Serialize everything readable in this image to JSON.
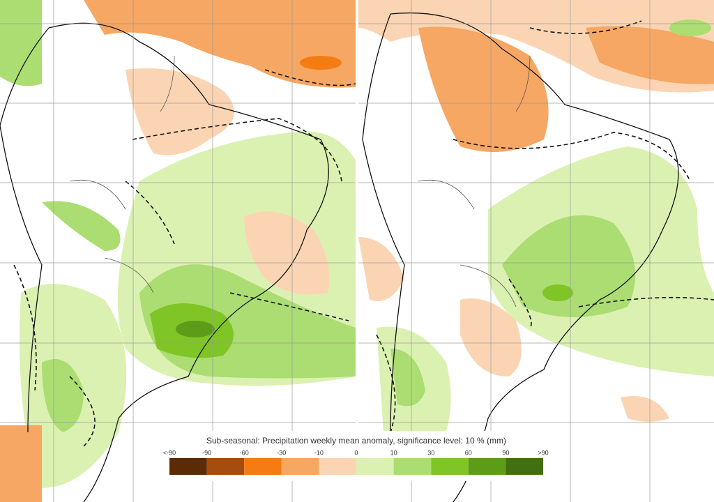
{
  "legend": {
    "title": "Sub-seasonal: Precipitation weekly mean anomaly, significance level: 10 % (mm)",
    "labels": [
      "<-90",
      "-90",
      "-60",
      "-30",
      "-10",
      "0",
      "10",
      "30",
      "60",
      "90",
      ">90"
    ],
    "colors": [
      "#5c2b06",
      "#a44d0f",
      "#f47c12",
      "#f6a763",
      "#fbd5b3",
      "#dbf1b2",
      "#abdd72",
      "#80c526",
      "#5c9c19",
      "#426f12"
    ]
  }
}
